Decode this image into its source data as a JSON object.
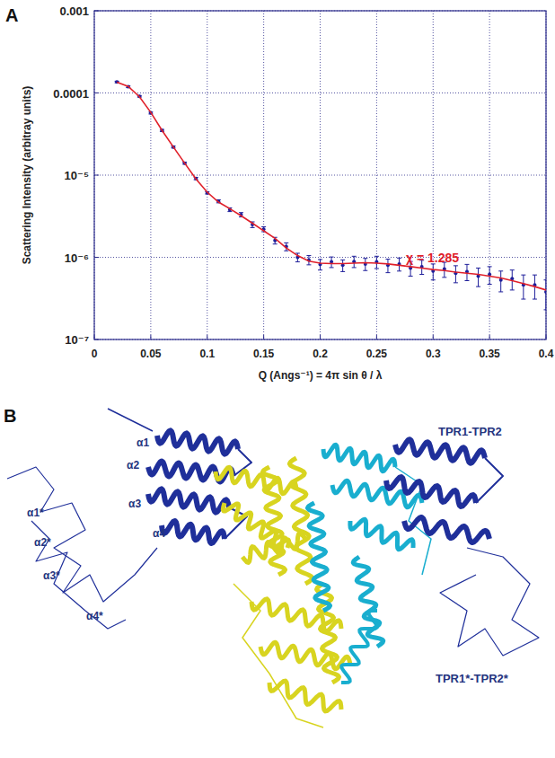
{
  "chart_data": {
    "type": "scatter",
    "xlabel": "Q (Angs⁻¹) = 4π sin θ / λ",
    "ylabel": "Scattering Intensity (arbitray units)",
    "annotations": [
      "χ = 1.285"
    ],
    "log": "y",
    "grid": true,
    "xlim": [
      0,
      0.4
    ],
    "xticks": [
      0,
      0.05,
      0.1,
      0.15,
      0.2,
      0.25,
      0.3,
      0.35,
      0.4
    ],
    "ylim": [
      1e-07,
      0.001
    ],
    "yticks": [
      {
        "value": 1e-07,
        "label": "10⁻⁷"
      },
      {
        "value": 1e-06,
        "label": "10⁻⁶"
      },
      {
        "value": 1e-05,
        "label": "10⁻⁵"
      },
      {
        "value": 0.0001,
        "label": "0.0001"
      },
      0.001
    ],
    "x": [
      0.02,
      0.03,
      0.04,
      0.05,
      0.06,
      0.07,
      0.08,
      0.09,
      0.1,
      0.11,
      0.12,
      0.13,
      0.14,
      0.15,
      0.16,
      0.17,
      0.18,
      0.19,
      0.2,
      0.21,
      0.22,
      0.23,
      0.24,
      0.25,
      0.26,
      0.27,
      0.28,
      0.29,
      0.3,
      0.31,
      0.32,
      0.33,
      0.34,
      0.35,
      0.36,
      0.37,
      0.38,
      0.39,
      0.4
    ],
    "series": [
      {
        "type": "scatter",
        "color": "#1e1e9a",
        "marker": "point",
        "values": [
          0.000136,
          0.000119,
          9.1e-05,
          5.7e-05,
          3.5e-05,
          2.2e-05,
          1.4e-05,
          9.1e-06,
          6.1e-06,
          4.8e-06,
          3.8e-06,
          3.3e-06,
          2.5e-06,
          2.2e-06,
          1.6e-06,
          1.35e-06,
          1e-06,
          9.3e-07,
          8.2e-07,
          8.8e-07,
          8e-07,
          8.9e-07,
          8.3e-07,
          8.8e-07,
          8e-07,
          8.3e-07,
          7.4e-07,
          7.7e-07,
          6.8e-07,
          7.2e-07,
          6.4e-07,
          6.7e-07,
          5.9e-07,
          6.2e-07,
          5.3e-07,
          5.5e-07,
          4.6e-07,
          4.6e-07,
          3.8e-07
        ],
        "errors": [
          3e-06,
          3e-06,
          2e-06,
          1.5e-06,
          1e-06,
          6e-07,
          4e-07,
          3e-07,
          2e-07,
          2e-07,
          2e-07,
          2e-07,
          2e-07,
          1.5e-07,
          1.5e-07,
          1.5e-07,
          1.2e-07,
          1.2e-07,
          1.2e-07,
          1.3e-07,
          1.3e-07,
          1.4e-07,
          1.4e-07,
          1.5e-07,
          1.5e-07,
          1.5e-07,
          1.5e-07,
          1.5e-07,
          1.5e-07,
          1.5e-07,
          1.5e-07,
          1.5e-07,
          1.5e-07,
          1.5e-07,
          1.5e-07,
          1.5e-07,
          1.5e-07,
          1.5e-07,
          1.5e-07
        ]
      },
      {
        "type": "line",
        "color": "#e0202a",
        "line_style": "solid",
        "values": [
          0.000135,
          0.00012,
          9e-05,
          5.8e-05,
          3.5e-05,
          2.2e-05,
          1.4e-05,
          9e-06,
          6.2e-06,
          4.7e-06,
          3.9e-06,
          3.2e-06,
          2.6e-06,
          2.1e-06,
          1.7e-06,
          1.3e-06,
          1.05e-06,
          9e-07,
          8.5e-07,
          8.4e-07,
          8.4e-07,
          8.5e-07,
          8.6e-07,
          8.5e-07,
          8.3e-07,
          8e-07,
          7.7e-07,
          7.4e-07,
          7.1e-07,
          6.9e-07,
          6.6e-07,
          6.4e-07,
          6.2e-07,
          5.9e-07,
          5.6e-07,
          5.2e-07,
          4.8e-07,
          4.4e-07,
          4e-07
        ]
      }
    ]
  },
  "figure": {
    "panel_labels": [
      "A",
      "B"
    ],
    "structure_labels": [
      "α1",
      "α2",
      "α3",
      "α4",
      "α1*",
      "α2*",
      "α3*",
      "α4*",
      "TPR1-TPR2",
      "TPR1*-TPR2*"
    ]
  }
}
